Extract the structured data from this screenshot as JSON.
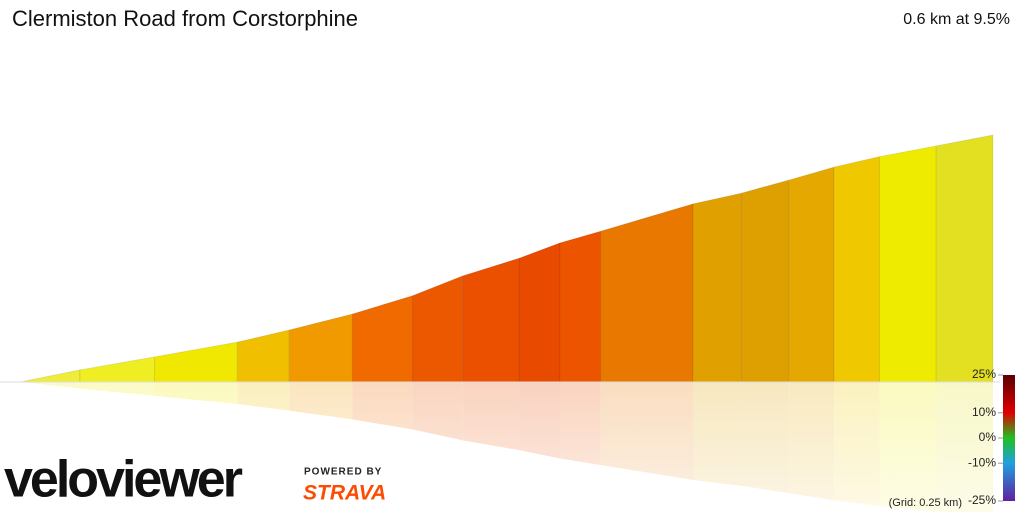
{
  "chart_data": {
    "type": "elevation-profile",
    "title": "Clermiston Road from Corstorphine",
    "subtitle": "0.6 km at 9.5%",
    "grid_note": "(Grid: 0.25 km)",
    "xlim": [
      0,
      0.6
    ],
    "ylim": [
      0,
      57
    ],
    "x": [
      0,
      0.037,
      0.083,
      0.134,
      0.166,
      0.205,
      0.242,
      0.273,
      0.308,
      0.333,
      0.358,
      0.415,
      0.445,
      0.474,
      0.502,
      0.53,
      0.565,
      0.6
    ],
    "elevation": [
      0,
      2.8,
      5.8,
      9.2,
      12.0,
      15.7,
      19.9,
      24.5,
      28.6,
      32.1,
      34.8,
      41.1,
      43.6,
      46.6,
      49.6,
      52.0,
      54.5,
      57.0
    ],
    "segment_colors": [
      "#eded3a",
      "#eeee22",
      "#f0e800",
      "#f0c000",
      "#f09a00",
      "#f06a00",
      "#ec5800",
      "#ea5000",
      "#e84a00",
      "#ec5400",
      "#e87800",
      "#e0a000",
      "#dea000",
      "#e4a800",
      "#f0c800",
      "#eeea00",
      "#e2e020"
    ],
    "legend": {
      "ticks": [
        {
          "value": 25,
          "label": "25%"
        },
        {
          "value": 10,
          "label": "10%"
        },
        {
          "value": 0,
          "label": "0%"
        },
        {
          "value": -10,
          "label": "-10%"
        },
        {
          "value": -25,
          "label": "-25%"
        }
      ],
      "colors": [
        "#5a0000",
        "#e00000",
        "#20c020",
        "#20a0e0",
        "#6020a0"
      ]
    },
    "branding": {
      "logo": "veloviewer",
      "powered": "POWERED BY",
      "strava": "STRAVA"
    }
  }
}
